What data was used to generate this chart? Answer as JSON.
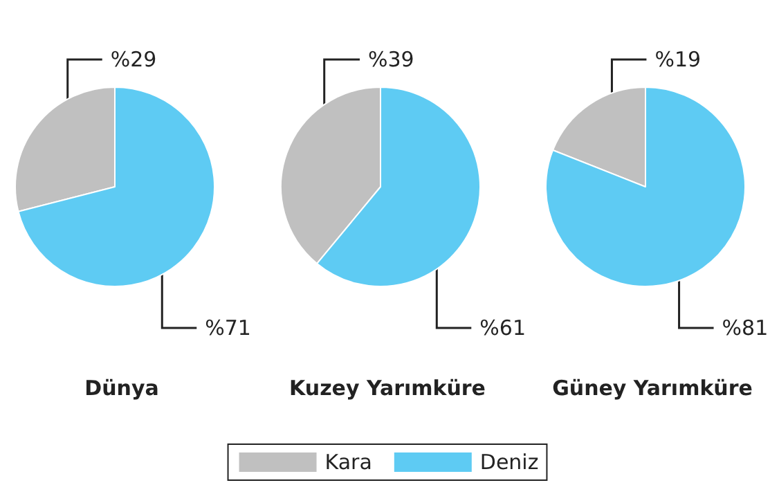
{
  "chart_data": [
    {
      "type": "pie",
      "title": "Dünya",
      "categories": [
        null,
        null
      ],
      "values": [
        29,
        71
      ],
      "colors": [
        "#c0c0c0",
        "#5ecbf3"
      ],
      "value_labels": [
        "%29",
        "%71"
      ]
    },
    {
      "type": "pie",
      "title": "Kuzey Yarımküre",
      "categories": [
        "Kara",
        "Deniz"
      ],
      "values": [
        39,
        61
      ],
      "colors": [
        "#c0c0c0",
        "#5ecbf3"
      ],
      "value_labels": [
        "%39",
        "%61"
      ],
      "legend": "bottom"
    },
    {
      "type": "pie",
      "title": "Güney Yarımküre",
      "categories": [
        null,
        null
      ],
      "values": [
        19,
        81
      ],
      "colors": [
        "#c0c0c0",
        "#5ecbf3"
      ],
      "value_labels": [
        "%19",
        "%81"
      ]
    }
  ]
}
